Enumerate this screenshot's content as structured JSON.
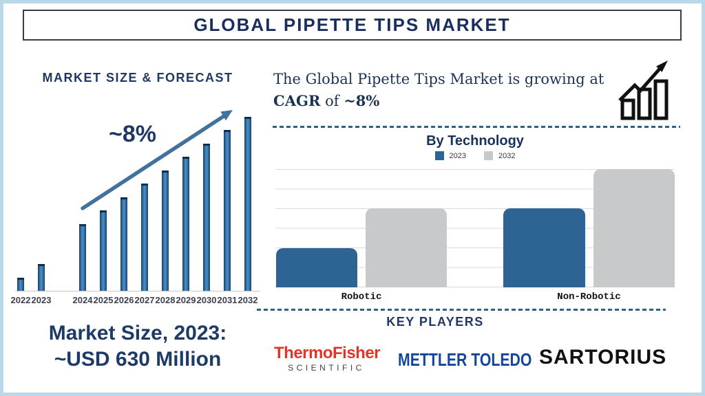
{
  "title": "GLOBAL PIPETTE TIPS MARKET",
  "left_panel": {
    "market_size": {
      "line1": "Market Size, 2023:",
      "line2": "~USD 630 Million"
    }
  },
  "right_panel": {
    "summary": {
      "line1": "The Global Pipette Tips Market is growing at",
      "bold_cagr": "CAGR",
      "mid": " of ",
      "bold_rate": "~8%"
    },
    "growth_chart_icon": "bar-chart-rising-arrow-icon",
    "key_players": {
      "heading": "KEY PLAYERS",
      "companies": [
        {
          "name": "Thermo Fisher Scientific",
          "line1": "ThermoFisher",
          "line2": "SCIENTIFIC"
        },
        {
          "name": "Mettler Toledo",
          "text": "METTLER TOLEDO"
        },
        {
          "name": "Sartorius",
          "text": "SARTORIUS"
        }
      ]
    }
  },
  "chart_data": [
    {
      "id": "market_size_forecast",
      "type": "bar",
      "title": "MARKET SIZE & FORECAST",
      "categories": [
        "2022",
        "2023",
        "2024",
        "2025",
        "2026",
        "2027",
        "2028",
        "2029",
        "2030",
        "2031",
        "2032"
      ],
      "values": [
        1,
        2,
        5,
        6,
        7,
        8,
        9,
        10,
        11,
        12,
        13
      ],
      "values_note": "relative bar heights as depicted; no numeric axis shown",
      "gap_after_category": "2023",
      "annotation": "~8%",
      "annotation_meaning": "CAGR trend arrow rising left to right",
      "known_point": "2023 market size ~USD 630 Million",
      "bar_color": "#2e6da4",
      "ylim": [
        0,
        13.5
      ],
      "grid": false
    },
    {
      "id": "by_technology",
      "type": "bar",
      "title": "By Technology",
      "categories": [
        "Robotic",
        "Non-Robotic"
      ],
      "series": [
        {
          "name": "2023",
          "color": "#2d6494",
          "values": [
            2,
            4
          ]
        },
        {
          "name": "2032",
          "color": "#c8c9ca",
          "values": [
            4,
            6
          ]
        }
      ],
      "values_note": "relative heights read against gridlines; no numeric axis labels shown",
      "ylim": [
        0,
        6
      ],
      "grid": true,
      "legend_position": "top"
    }
  ],
  "colors": {
    "navy_text": "#1f3864",
    "frame_border": "#b9d8ea",
    "title_box_border": "#3b3b43",
    "forecast_bar": "#2e6da4",
    "trend_arrow": "#41719c",
    "dashed_divider": "#2d6186",
    "bar_2023": "#2d6494",
    "bar_2032": "#c8c9ca",
    "gridline": "#dadada",
    "thermo_red": "#e63329",
    "thermo_gray": "#414042",
    "mettler_blue": "#14459c",
    "sartorius_black": "#111111"
  }
}
